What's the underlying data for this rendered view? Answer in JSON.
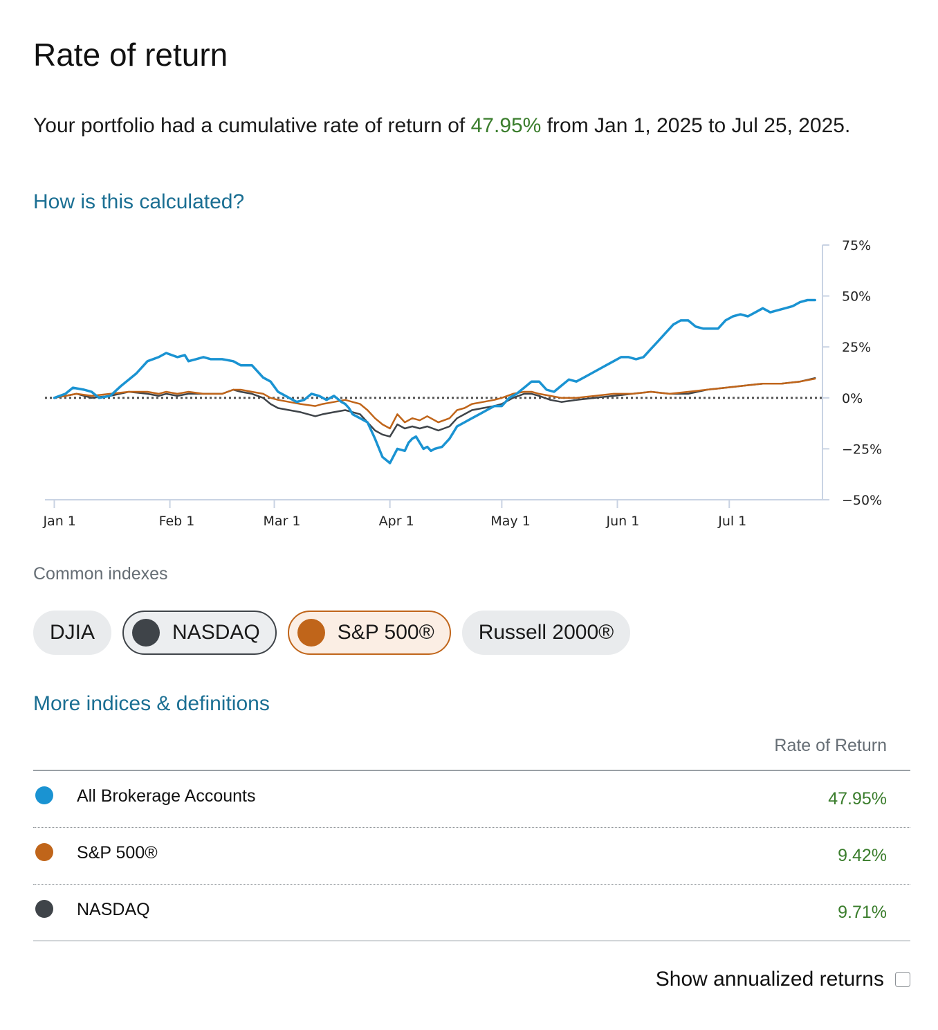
{
  "header": {
    "title": "Rate of return"
  },
  "summary": {
    "prefix": "Your portfolio had a cumulative rate of return of",
    "value": "47.95%",
    "suffix": "from Jan 1, 2025 to Jul 25, 2025."
  },
  "links": {
    "calculated": "How is this calculated?",
    "more_indices": "More indices & definitions"
  },
  "indexes": {
    "label": "Common indexes",
    "chips": [
      {
        "label": "DJIA",
        "selected": false
      },
      {
        "label": "NASDAQ",
        "selected": true,
        "color": "#3f4449"
      },
      {
        "label": "S&P 500®",
        "selected": true,
        "color": "#c0651a"
      },
      {
        "label": "Russell 2000®",
        "selected": false
      }
    ]
  },
  "table": {
    "header": "Rate of Return",
    "rows": [
      {
        "name": "All Brokerage Accounts",
        "value": "47.95%",
        "color": "#1a93d2"
      },
      {
        "name": "S&P 500®",
        "value": "9.42%",
        "color": "#c0651a"
      },
      {
        "name": "NASDAQ",
        "value": "9.71%",
        "color": "#3f4449"
      }
    ]
  },
  "annualized": {
    "label": "Show annualized returns",
    "checked": false
  },
  "colors": {
    "positive": "#3a7d2c",
    "link": "#1b6f93",
    "portfolio": "#1a93d2",
    "sp500": "#c0651a",
    "nasdaq": "#3f4449"
  },
  "chart_data": {
    "type": "line",
    "title": "",
    "xlabel": "",
    "ylabel": "",
    "ylim": [
      -50,
      75
    ],
    "yticks": [
      75,
      50,
      25,
      0,
      -25,
      -50
    ],
    "ytick_labels": [
      "75%",
      "50%",
      "25%",
      "0%",
      "−25%",
      "−50%"
    ],
    "xticks": [
      {
        "day": 0,
        "label": "Jan 1"
      },
      {
        "day": 31,
        "label": "Feb 1"
      },
      {
        "day": 59,
        "label": "Mar 1"
      },
      {
        "day": 90,
        "label": "Apr 1"
      },
      {
        "day": 120,
        "label": "May 1"
      },
      {
        "day": 151,
        "label": "Jun 1"
      },
      {
        "day": 181,
        "label": "Jul 1"
      }
    ],
    "xlim": [
      -2.5,
      206
    ],
    "baseline": 0,
    "series": [
      {
        "name": "All Brokerage Accounts",
        "color": "#1a93d2",
        "x": [
          0,
          3,
          5,
          8,
          10,
          12,
          15,
          18,
          22,
          25,
          28,
          30,
          33,
          35,
          36,
          38,
          40,
          42,
          45,
          48,
          50,
          53,
          56,
          58,
          60,
          63,
          65,
          67,
          69,
          71,
          73,
          75,
          77,
          78,
          79,
          80,
          82,
          84,
          86,
          88,
          90,
          92,
          94,
          95,
          96,
          97,
          98,
          99,
          100,
          101,
          102,
          104,
          106,
          108,
          110,
          112,
          114,
          116,
          118,
          120,
          121,
          122,
          124,
          126,
          128,
          130,
          132,
          134,
          136,
          138,
          140,
          142,
          144,
          146,
          148,
          150,
          152,
          154,
          156,
          158,
          160,
          162,
          164,
          166,
          168,
          170,
          172,
          174,
          176,
          178,
          180,
          182,
          184,
          186,
          188,
          190,
          192,
          194,
          196,
          198,
          200,
          202,
          204
        ],
        "y": [
          0,
          2,
          5,
          4,
          3,
          0,
          1,
          6,
          12,
          18,
          20,
          22,
          20,
          21,
          18,
          19,
          20,
          19,
          19,
          18,
          16,
          16,
          10,
          8,
          3,
          0,
          -2,
          -1,
          2,
          1,
          -1,
          1,
          -2,
          -3,
          -5,
          -8,
          -10,
          -12,
          -20,
          -29,
          -32,
          -25,
          -26,
          -22,
          -20,
          -19,
          -22,
          -25,
          -24,
          -26,
          -25,
          -24,
          -20,
          -14,
          -12,
          -10,
          -8,
          -6,
          -4,
          -4,
          -2,
          0,
          2,
          5,
          8,
          8,
          4,
          3,
          6,
          9,
          8,
          10,
          12,
          14,
          16,
          18,
          20,
          20,
          19,
          20,
          24,
          28,
          32,
          36,
          38,
          38,
          35,
          34,
          34,
          34,
          38,
          40,
          41,
          40,
          42,
          44,
          42,
          43,
          44,
          45,
          47,
          48,
          48
        ]
      },
      {
        "name": "S&P 500®",
        "color": "#c0651a",
        "x": [
          0,
          3,
          6,
          10,
          15,
          20,
          25,
          28,
          30,
          33,
          36,
          40,
          45,
          48,
          50,
          53,
          56,
          58,
          60,
          63,
          66,
          70,
          72,
          75,
          78,
          80,
          82,
          84,
          86,
          88,
          90,
          92,
          94,
          96,
          98,
          100,
          103,
          106,
          108,
          110,
          112,
          115,
          118,
          120,
          123,
          126,
          128,
          130,
          133,
          136,
          140,
          145,
          150,
          155,
          160,
          165,
          170,
          175,
          180,
          185,
          190,
          195,
          200,
          204
        ],
        "y": [
          0,
          1,
          2,
          1,
          2,
          3,
          3,
          2,
          3,
          2,
          3,
          2,
          2,
          4,
          4,
          3,
          2,
          0,
          -1,
          -2,
          -3,
          -4,
          -3,
          -2,
          -1,
          -2,
          -3,
          -6,
          -10,
          -13,
          -15,
          -8,
          -12,
          -10,
          -11,
          -9,
          -12,
          -10,
          -6,
          -5,
          -3,
          -2,
          -1,
          0,
          2,
          3,
          3,
          2,
          1,
          0,
          0,
          1,
          2,
          2,
          3,
          2,
          3,
          4,
          5,
          6,
          7,
          7,
          8,
          9.4
        ]
      },
      {
        "name": "NASDAQ",
        "color": "#3f4449",
        "x": [
          0,
          3,
          6,
          10,
          15,
          20,
          25,
          28,
          30,
          33,
          36,
          40,
          45,
          48,
          50,
          53,
          56,
          58,
          60,
          63,
          66,
          70,
          72,
          75,
          78,
          80,
          82,
          84,
          86,
          88,
          90,
          92,
          94,
          96,
          98,
          100,
          103,
          106,
          108,
          110,
          112,
          115,
          118,
          120,
          123,
          126,
          128,
          130,
          133,
          136,
          140,
          145,
          150,
          155,
          160,
          165,
          170,
          175,
          180,
          185,
          190,
          195,
          200,
          204
        ],
        "y": [
          0,
          1,
          2,
          0,
          1,
          3,
          2,
          1,
          2,
          1,
          2,
          2,
          2,
          4,
          3,
          2,
          0,
          -3,
          -5,
          -6,
          -7,
          -9,
          -8,
          -7,
          -6,
          -7,
          -8,
          -12,
          -16,
          -18,
          -19,
          -13,
          -15,
          -14,
          -15,
          -14,
          -16,
          -14,
          -10,
          -8,
          -6,
          -5,
          -4,
          -3,
          0,
          2,
          2,
          1,
          -1,
          -2,
          -1,
          0,
          1,
          2,
          3,
          2,
          2,
          4,
          5,
          6,
          7,
          7,
          8,
          9.7
        ]
      }
    ]
  }
}
